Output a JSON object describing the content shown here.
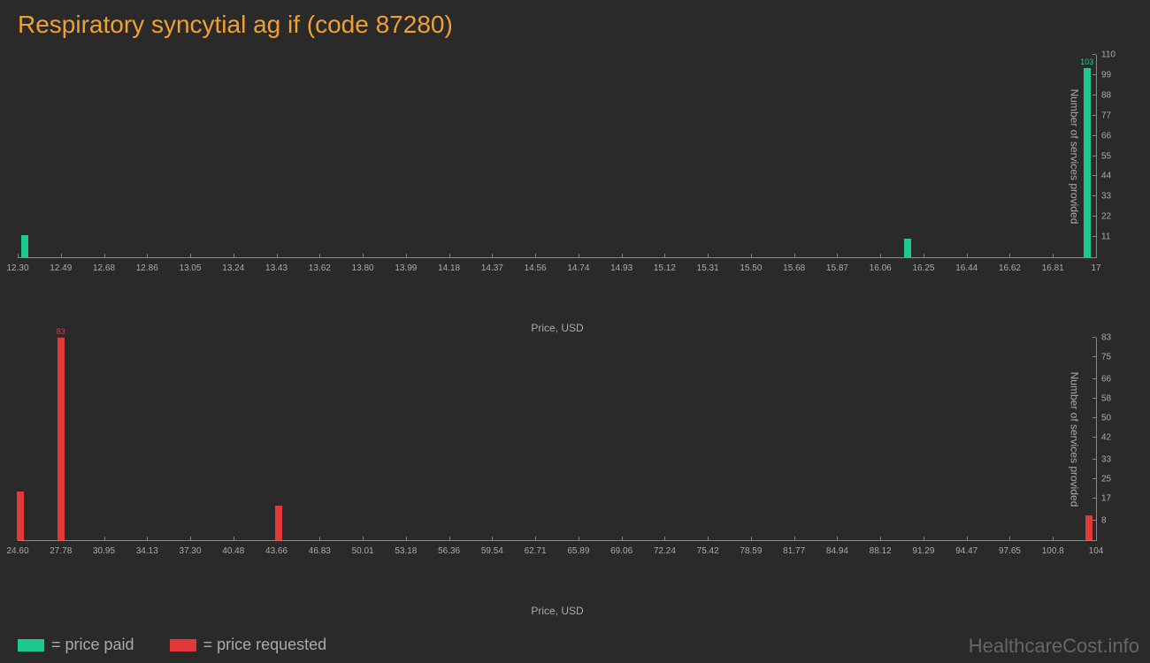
{
  "title": "Respiratory syncytial ag if (code 87280)",
  "watermark": "HealthcareCost.info",
  "colors": {
    "background": "#2a2a2a",
    "title": "#f0a030",
    "paid": "#1ec98e",
    "requested": "#e43838",
    "axis": "#888888",
    "tick_label": "#aaaaaa"
  },
  "chart_paid": {
    "type": "bar",
    "bar_color": "#1ec98e",
    "x_label": "Price, USD",
    "y_label": "Number of services provided",
    "x_min": 12.3,
    "x_max": 17.0,
    "y_min": 0,
    "y_max": 110,
    "x_ticks": [
      "12.30",
      "12.49",
      "12.68",
      "12.86",
      "13.05",
      "13.24",
      "13.43",
      "13.62",
      "13.80",
      "13.99",
      "14.18",
      "14.37",
      "14.56",
      "14.74",
      "14.93",
      "15.12",
      "15.31",
      "15.50",
      "15.68",
      "15.87",
      "16.06",
      "16.25",
      "16.44",
      "16.62",
      "16.81",
      "17"
    ],
    "y_ticks": [
      11,
      22,
      33,
      44,
      55,
      66,
      77,
      88,
      99,
      110
    ],
    "bars": [
      {
        "x": 12.33,
        "y": 12,
        "label": ""
      },
      {
        "x": 16.18,
        "y": 10,
        "label": ""
      },
      {
        "x": 16.96,
        "y": 103,
        "label": "103"
      }
    ]
  },
  "chart_requested": {
    "type": "bar",
    "bar_color": "#e43838",
    "x_label": "Price, USD",
    "y_label": "Number of services provided",
    "x_min": 24.6,
    "x_max": 104.0,
    "y_min": 0,
    "y_max": 83,
    "x_ticks": [
      "24.60",
      "27.78",
      "30.95",
      "34.13",
      "37.30",
      "40.48",
      "43.66",
      "46.83",
      "50.01",
      "53.18",
      "56.36",
      "59.54",
      "62.71",
      "65.89",
      "69.06",
      "72.24",
      "75.42",
      "78.59",
      "81.77",
      "84.94",
      "88.12",
      "91.29",
      "94.47",
      "97.65",
      "100.8",
      "104"
    ],
    "y_ticks": [
      8,
      17,
      25,
      33,
      42,
      50,
      58,
      66,
      75,
      83
    ],
    "bars": [
      {
        "x": 24.8,
        "y": 20,
        "label": ""
      },
      {
        "x": 27.78,
        "y": 83,
        "label": "83"
      },
      {
        "x": 43.8,
        "y": 14,
        "label": ""
      },
      {
        "x": 103.5,
        "y": 10,
        "label": ""
      }
    ]
  },
  "legend": {
    "paid": "= price paid",
    "requested": "= price requested"
  }
}
